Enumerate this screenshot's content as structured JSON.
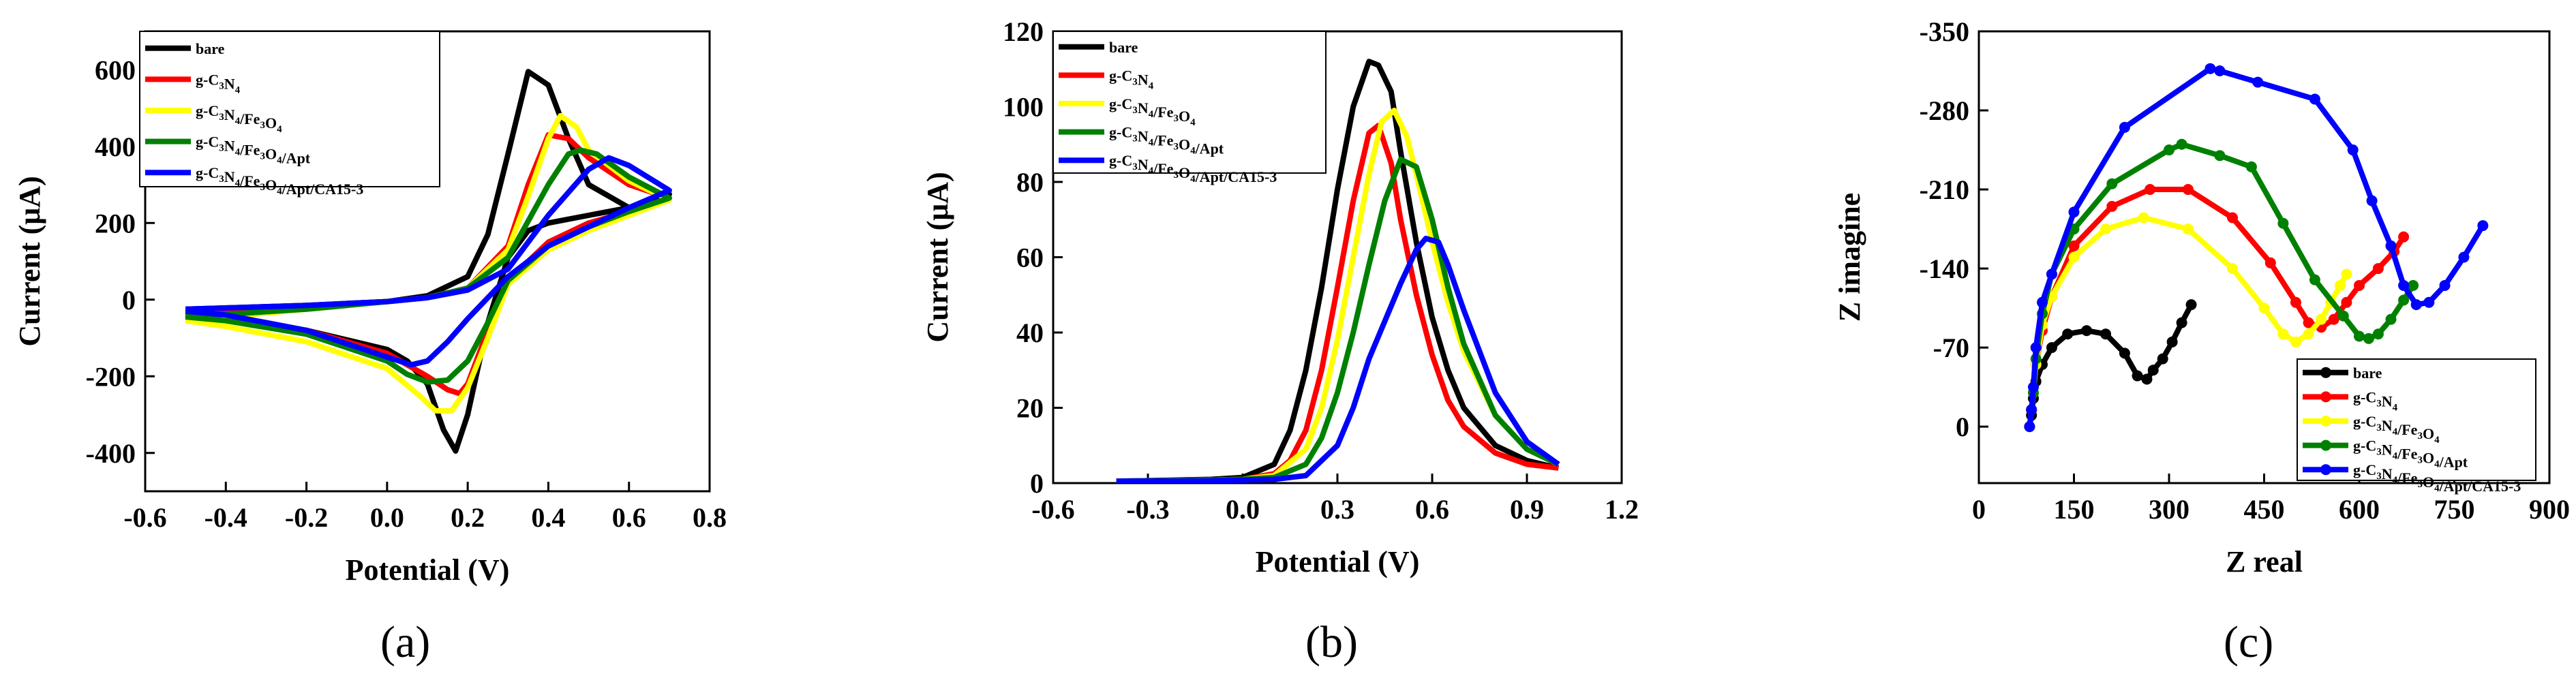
{
  "panels": [
    {
      "label": "(a)"
    },
    {
      "label": "(b)"
    },
    {
      "label": "(c)"
    }
  ],
  "chart_data": [
    {
      "type": "line",
      "title": "",
      "xlabel": "Potential (V)",
      "ylabel": "Current (μA)",
      "xlim": [
        -0.6,
        0.8
      ],
      "ylim": [
        -500,
        700
      ],
      "xticks": [
        "-0.6",
        "-0.4",
        "-0.2",
        "0.0",
        "0.2",
        "0.4",
        "0.6",
        "0.8"
      ],
      "yticks": [
        "-400",
        "-200",
        "0",
        "200",
        "400",
        "600"
      ],
      "legend_position": "top-left",
      "series": [
        {
          "name": "bare",
          "color": "#000000",
          "x": [
            -0.5,
            -0.2,
            0.0,
            0.1,
            0.2,
            0.25,
            0.3,
            0.35,
            0.4,
            0.45,
            0.5,
            0.6,
            0.7,
            0.6,
            0.5,
            0.4,
            0.35,
            0.3,
            0.25,
            0.2,
            0.17,
            0.14,
            0.1,
            0.05,
            0.0,
            -0.2,
            -0.4,
            -0.5
          ],
          "y": [
            -25,
            -15,
            -5,
            10,
            60,
            170,
            380,
            595,
            560,
            420,
            300,
            240,
            275,
            240,
            220,
            200,
            180,
            110,
            -60,
            -300,
            -395,
            -340,
            -220,
            -160,
            -130,
            -80,
            -50,
            -40
          ]
        },
        {
          "name": "g-C3N4",
          "color": "#ff0000",
          "x": [
            -0.5,
            -0.2,
            0.0,
            0.1,
            0.2,
            0.3,
            0.35,
            0.4,
            0.45,
            0.5,
            0.6,
            0.7,
            0.6,
            0.5,
            0.4,
            0.3,
            0.25,
            0.2,
            0.18,
            0.15,
            0.1,
            0.05,
            0.0,
            -0.2,
            -0.4,
            -0.5
          ],
          "y": [
            -30,
            -20,
            -5,
            5,
            30,
            140,
            300,
            430,
            420,
            370,
            300,
            265,
            230,
            200,
            150,
            50,
            -80,
            -220,
            -245,
            -235,
            -200,
            -170,
            -140,
            -80,
            -50,
            -40
          ]
        },
        {
          "name": "g-C3N4/Fe3O4",
          "color": "#ffff00",
          "x": [
            -0.5,
            -0.2,
            0.0,
            0.1,
            0.2,
            0.3,
            0.35,
            0.4,
            0.43,
            0.47,
            0.5,
            0.6,
            0.7,
            0.6,
            0.5,
            0.4,
            0.3,
            0.25,
            0.2,
            0.16,
            0.12,
            0.08,
            0.0,
            -0.2,
            -0.4,
            -0.5
          ],
          "y": [
            -55,
            -25,
            -5,
            5,
            30,
            130,
            270,
            420,
            480,
            450,
            390,
            310,
            260,
            220,
            180,
            130,
            40,
            -100,
            -230,
            -290,
            -290,
            -250,
            -180,
            -110,
            -70,
            -55
          ]
        },
        {
          "name": "g-C3N4/Fe3O4/Apt",
          "color": "#008000",
          "x": [
            -0.5,
            -0.2,
            0.0,
            0.1,
            0.2,
            0.3,
            0.4,
            0.45,
            0.48,
            0.52,
            0.6,
            0.7,
            0.6,
            0.5,
            0.4,
            0.3,
            0.25,
            0.2,
            0.15,
            0.1,
            0.05,
            0.0,
            -0.2,
            -0.4,
            -0.5
          ],
          "y": [
            -45,
            -25,
            -5,
            5,
            30,
            110,
            300,
            380,
            390,
            380,
            320,
            265,
            230,
            190,
            140,
            50,
            -60,
            -160,
            -210,
            -215,
            -195,
            -160,
            -90,
            -55,
            -45
          ]
        },
        {
          "name": "g-C3N4/Fe3O4/Apt/CA15-3",
          "color": "#0000ff",
          "x": [
            -0.5,
            -0.2,
            0.0,
            0.1,
            0.2,
            0.3,
            0.4,
            0.5,
            0.55,
            0.6,
            0.7,
            0.6,
            0.5,
            0.4,
            0.3,
            0.2,
            0.15,
            0.1,
            0.06,
            0.0,
            -0.2,
            -0.4,
            -0.5
          ],
          "y": [
            -25,
            -15,
            -5,
            5,
            25,
            80,
            220,
            340,
            370,
            350,
            285,
            240,
            190,
            140,
            60,
            -50,
            -110,
            -160,
            -170,
            -150,
            -80,
            -40,
            -30
          ]
        }
      ]
    },
    {
      "type": "line",
      "title": "",
      "xlabel": "Potential (V)",
      "ylabel": "Current (μA)",
      "xlim": [
        -0.6,
        1.2
      ],
      "ylim": [
        0,
        120
      ],
      "xticks": [
        "-0.6",
        "-0.3",
        "0.0",
        "0.3",
        "0.6",
        "0.9",
        "1.2"
      ],
      "yticks": [
        "0",
        "20",
        "40",
        "60",
        "80",
        "100",
        "120"
      ],
      "legend_position": "top-left",
      "series": [
        {
          "name": "bare",
          "color": "#000000",
          "x": [
            -0.4,
            -0.1,
            0.0,
            0.1,
            0.15,
            0.2,
            0.25,
            0.3,
            0.35,
            0.4,
            0.43,
            0.47,
            0.5,
            0.55,
            0.6,
            0.65,
            0.7,
            0.8,
            0.9,
            1.0
          ],
          "y": [
            0.5,
            1,
            1.5,
            5,
            14,
            30,
            52,
            78,
            100,
            112,
            111,
            104,
            88,
            64,
            44,
            30,
            20,
            10,
            6,
            4
          ]
        },
        {
          "name": "g-C3N4",
          "color": "#ff0000",
          "x": [
            -0.4,
            -0.1,
            0.0,
            0.1,
            0.15,
            0.2,
            0.25,
            0.3,
            0.35,
            0.4,
            0.43,
            0.47,
            0.5,
            0.55,
            0.6,
            0.65,
            0.7,
            0.8,
            0.9,
            1.0
          ],
          "y": [
            0.5,
            0.8,
            1,
            2.5,
            6,
            14,
            30,
            52,
            75,
            93,
            95,
            85,
            70,
            50,
            34,
            22,
            15,
            8,
            5,
            4
          ]
        },
        {
          "name": "g-C3N4/Fe3O4",
          "color": "#ffff00",
          "x": [
            -0.4,
            -0.1,
            0.0,
            0.1,
            0.2,
            0.25,
            0.3,
            0.35,
            0.4,
            0.44,
            0.48,
            0.52,
            0.55,
            0.6,
            0.65,
            0.7,
            0.8,
            0.9,
            1.0
          ],
          "y": [
            0.5,
            0.8,
            1,
            2,
            9,
            20,
            38,
            60,
            82,
            96,
            99,
            92,
            82,
            64,
            48,
            35,
            18,
            9,
            5
          ]
        },
        {
          "name": "g-C3N4/Fe3O4/Apt",
          "color": "#008000",
          "x": [
            -0.4,
            -0.1,
            0.0,
            0.1,
            0.2,
            0.25,
            0.3,
            0.35,
            0.4,
            0.45,
            0.5,
            0.55,
            0.6,
            0.65,
            0.7,
            0.8,
            0.9,
            1.0
          ],
          "y": [
            0.5,
            0.8,
            1,
            1.5,
            5,
            12,
            24,
            40,
            58,
            75,
            86,
            84,
            70,
            52,
            37,
            18,
            9,
            5
          ]
        },
        {
          "name": "g-C3N4/Fe3O4/Apt/CA15-3",
          "color": "#0000ff",
          "x": [
            -0.4,
            -0.1,
            0.0,
            0.1,
            0.2,
            0.3,
            0.35,
            0.4,
            0.45,
            0.5,
            0.55,
            0.58,
            0.62,
            0.65,
            0.7,
            0.8,
            0.9,
            1.0
          ],
          "y": [
            0.5,
            0.6,
            0.8,
            1,
            2,
            10,
            20,
            33,
            43,
            53,
            62,
            65,
            64,
            58,
            46,
            24,
            11,
            5
          ]
        }
      ]
    },
    {
      "type": "scatter",
      "title": "",
      "xlabel": "Z real",
      "ylabel": "Z imagine",
      "xlim": [
        0,
        900
      ],
      "ylim": [
        -350,
        50
      ],
      "y_inverted": true,
      "xticks": [
        "0",
        "150",
        "300",
        "450",
        "600",
        "750",
        "900"
      ],
      "yticks": [
        "-350",
        "-280",
        "-210",
        "-140",
        "-70",
        "0"
      ],
      "legend_position": "bottom-right",
      "series": [
        {
          "name": "bare",
          "color": "#000000",
          "x": [
            80,
            83,
            86,
            90,
            100,
            115,
            140,
            170,
            200,
            230,
            250,
            265,
            275,
            290,
            305,
            320,
            335
          ],
          "y": [
            0,
            -10,
            -25,
            -40,
            -55,
            -70,
            -82,
            -85,
            -82,
            -65,
            -45,
            -42,
            -50,
            -60,
            -75,
            -92,
            -108
          ]
        },
        {
          "name": "g-C3N4",
          "color": "#ff0000",
          "x": [
            80,
            83,
            86,
            90,
            100,
            115,
            150,
            210,
            270,
            330,
            400,
            460,
            500,
            520,
            540,
            560,
            580,
            600,
            630,
            655,
            670
          ],
          "y": [
            0,
            -15,
            -30,
            -55,
            -85,
            -115,
            -160,
            -195,
            -210,
            -210,
            -185,
            -145,
            -110,
            -92,
            -88,
            -95,
            -110,
            -125,
            -140,
            -155,
            -168
          ]
        },
        {
          "name": "g-C3N4/Fe3O4",
          "color": "#ffff00",
          "x": [
            80,
            83,
            86,
            90,
            100,
            115,
            150,
            200,
            260,
            330,
            400,
            450,
            480,
            500,
            520,
            540,
            555,
            570,
            580
          ],
          "y": [
            0,
            -15,
            -30,
            -55,
            -90,
            -115,
            -150,
            -175,
            -185,
            -175,
            -140,
            -105,
            -82,
            -75,
            -82,
            -95,
            -110,
            -125,
            -135
          ]
        },
        {
          "name": "g-C3N4/Fe3O4/Apt",
          "color": "#008000",
          "x": [
            80,
            83,
            86,
            90,
            100,
            115,
            150,
            210,
            300,
            320,
            380,
            430,
            480,
            530,
            575,
            600,
            615,
            630,
            650,
            670,
            685
          ],
          "y": [
            0,
            -15,
            -30,
            -60,
            -100,
            -135,
            -175,
            -215,
            -245,
            -250,
            -240,
            -230,
            -180,
            -130,
            -98,
            -80,
            -78,
            -82,
            -95,
            -112,
            -125
          ]
        },
        {
          "name": "g-C3N4/Fe3O4/Apt/CA15-3",
          "color": "#0000ff",
          "x": [
            80,
            83,
            86,
            90,
            100,
            115,
            150,
            230,
            365,
            380,
            440,
            530,
            590,
            620,
            650,
            670,
            690,
            710,
            735,
            765,
            795
          ],
          "y": [
            0,
            -15,
            -35,
            -70,
            -110,
            -135,
            -190,
            -265,
            -317,
            -315,
            -305,
            -290,
            -245,
            -200,
            -160,
            -125,
            -108,
            -110,
            -125,
            -150,
            -178
          ]
        }
      ]
    }
  ]
}
